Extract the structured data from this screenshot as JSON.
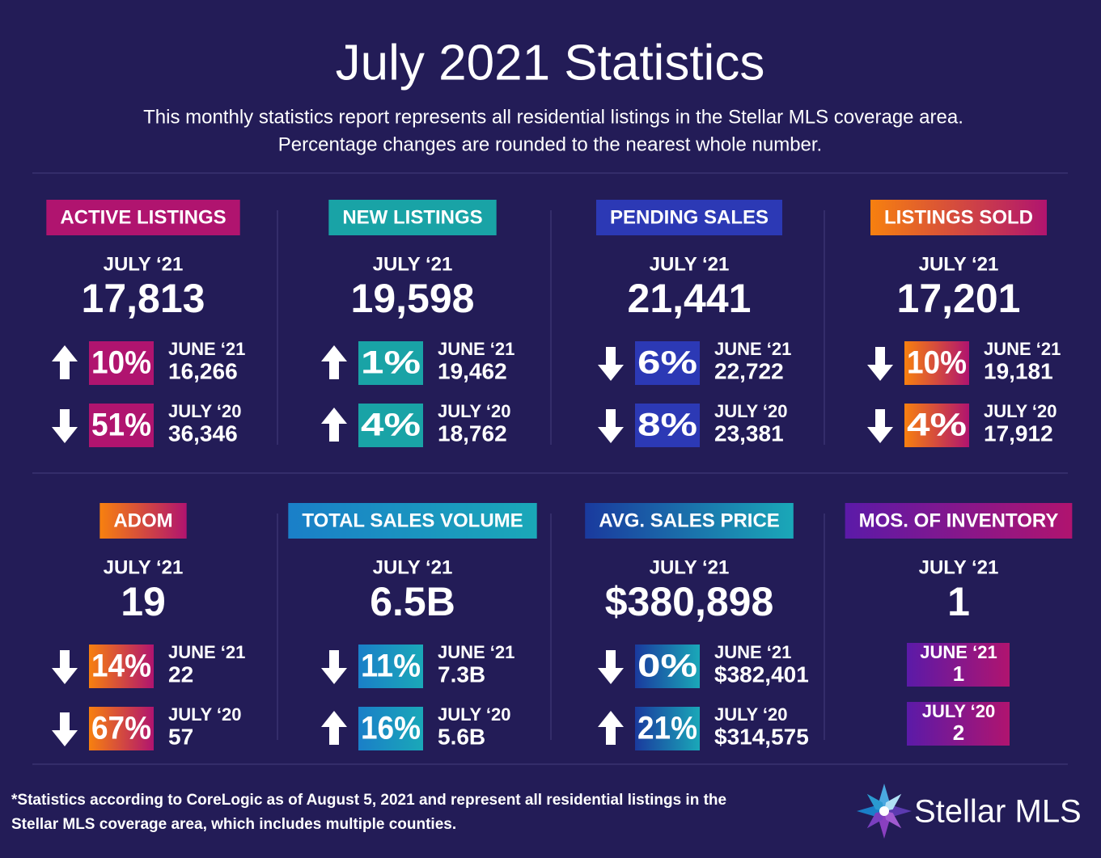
{
  "title": "July 2021 Statistics",
  "subtitle": [
    "This monthly statistics report represents all residential listings in the Stellar MLS coverage area.",
    "Percentage changes are rounded to the nearest whole number."
  ],
  "panels": [
    {
      "label": "ACTIVE LISTINGS",
      "colors": [
        "#b0146f",
        "#b0146f"
      ],
      "period": "JULY ‘21",
      "value": "17,813",
      "comparisons": [
        {
          "direction": "up",
          "change": "10%",
          "period": "JUNE ‘21",
          "value": "16,266"
        },
        {
          "direction": "down",
          "change": "51%",
          "period": "JULY ‘20",
          "value": "36,346"
        }
      ]
    },
    {
      "label": "NEW LISTINGS",
      "colors": [
        "#19a3a6",
        "#19a3a6"
      ],
      "period": "JULY ‘21",
      "value": "19,598",
      "comparisons": [
        {
          "direction": "up",
          "change": "1%",
          "period": "JUNE ‘21",
          "value": "19,462"
        },
        {
          "direction": "up",
          "change": "4%",
          "period": "JULY ‘20",
          "value": "18,762"
        }
      ]
    },
    {
      "label": "PENDING SALES",
      "colors": [
        "#2c39b5",
        "#2c39b5"
      ],
      "period": "JULY ‘21",
      "value": "21,441",
      "comparisons": [
        {
          "direction": "down",
          "change": "6%",
          "period": "JUNE ‘21",
          "value": "22,722"
        },
        {
          "direction": "down",
          "change": "8%",
          "period": "JULY ‘20",
          "value": "23,381"
        }
      ]
    },
    {
      "label": "LISTINGS SOLD",
      "colors": [
        "#f7800f",
        "#b0146f"
      ],
      "period": "JULY ‘21",
      "value": "17,201",
      "comparisons": [
        {
          "direction": "down",
          "change": "10%",
          "period": "JUNE ‘21",
          "value": "19,181"
        },
        {
          "direction": "down",
          "change": "4%",
          "period": "JULY ‘20",
          "value": "17,912"
        }
      ]
    },
    {
      "label": "ADOM",
      "colors": [
        "#f7800f",
        "#b0146f"
      ],
      "period": "JULY ‘21",
      "value": "19",
      "comparisons": [
        {
          "direction": "down",
          "change": "14%",
          "period": "JUNE ‘21",
          "value": "22"
        },
        {
          "direction": "down",
          "change": "67%",
          "period": "JULY ‘20",
          "value": "57"
        }
      ]
    },
    {
      "label": "TOTAL SALES VOLUME",
      "colors": [
        "#1a7fc8",
        "#1aa8b8"
      ],
      "period": "JULY ‘21",
      "value": "6.5B",
      "comparisons": [
        {
          "direction": "down",
          "change": "11%",
          "period": "JUNE ‘21",
          "value": "7.3B"
        },
        {
          "direction": "up",
          "change": "16%",
          "period": "JULY ‘20",
          "value": "5.6B"
        }
      ]
    },
    {
      "label": "AVG. SALES PRICE",
      "colors": [
        "#1a3a9e",
        "#1aa8b8"
      ],
      "period": "JULY ‘21",
      "value": "$380,898",
      "comparisons": [
        {
          "direction": "down",
          "change": "0%",
          "period": "JUNE ‘21",
          "value": "$382,401"
        },
        {
          "direction": "up",
          "change": "21%",
          "period": "JULY ‘20",
          "value": "$314,575"
        }
      ]
    },
    {
      "label": "MOS. OF INVENTORY",
      "colors": [
        "#5b1aa8",
        "#b0146f"
      ],
      "period": "JULY ‘21",
      "value": "1",
      "comparisons": [
        {
          "period": "JUNE ‘21",
          "value": "1"
        },
        {
          "period": "JULY ‘20",
          "value": "2"
        }
      ]
    }
  ],
  "footnote": [
    "*Statistics according to CoreLogic as of August 5, 2021 and represent all residential listings in the",
    "Stellar MLS coverage area, which includes multiple counties."
  ],
  "logo": "Stellar MLS"
}
